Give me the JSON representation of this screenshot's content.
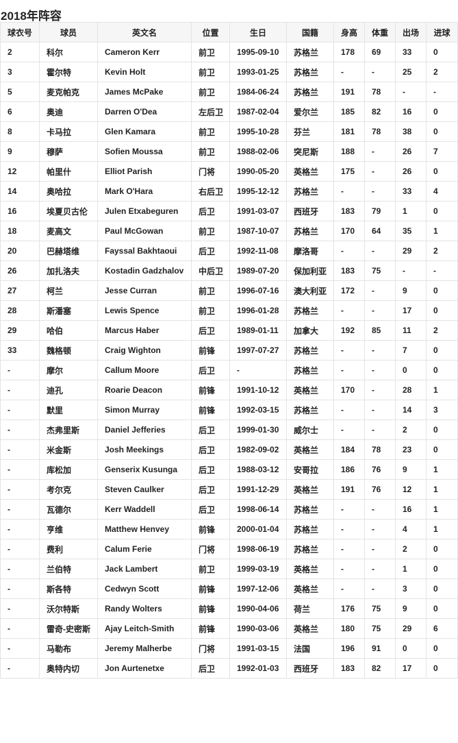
{
  "title": "2018年阵容",
  "headers": [
    "球衣号",
    "球员",
    "英文名",
    "位置",
    "生日",
    "国籍",
    "身高",
    "体重",
    "出场",
    "进球"
  ],
  "rows": [
    [
      "2",
      "科尔",
      "Cameron Kerr",
      "前卫",
      "1995-09-10",
      "苏格兰",
      "178",
      "69",
      "33",
      "0"
    ],
    [
      "3",
      "霍尔特",
      "Kevin Holt",
      "前卫",
      "1993-01-25",
      "苏格兰",
      "-",
      "-",
      "25",
      "2"
    ],
    [
      "5",
      "麦克帕克",
      "James McPake",
      "前卫",
      "1984-06-24",
      "苏格兰",
      "191",
      "78",
      "-",
      "-"
    ],
    [
      "6",
      "奥迪",
      "Darren O'Dea",
      "左后卫",
      "1987-02-04",
      "爱尔兰",
      "185",
      "82",
      "16",
      "0"
    ],
    [
      "8",
      "卡马拉",
      "Glen Kamara",
      "前卫",
      "1995-10-28",
      "芬兰",
      "181",
      "78",
      "38",
      "0"
    ],
    [
      "9",
      "穆萨",
      "Sofien Moussa",
      "前卫",
      "1988-02-06",
      "突尼斯",
      "188",
      "-",
      "26",
      "7"
    ],
    [
      "12",
      "帕里什",
      "Elliot Parish",
      "门将",
      "1990-05-20",
      "英格兰",
      "175",
      "-",
      "26",
      "0"
    ],
    [
      "14",
      "奥哈拉",
      "Mark O'Hara",
      "右后卫",
      "1995-12-12",
      "苏格兰",
      "-",
      "-",
      "33",
      "4"
    ],
    [
      "16",
      "埃夏贝古伦",
      "Julen Etxabeguren",
      "后卫",
      "1991-03-07",
      "西班牙",
      "183",
      "79",
      "1",
      "0"
    ],
    [
      "18",
      "麦高文",
      "Paul McGowan",
      "前卫",
      "1987-10-07",
      "苏格兰",
      "170",
      "64",
      "35",
      "1"
    ],
    [
      "20",
      "巴赫塔维",
      "Fayssal Bakhtaoui",
      "后卫",
      "1992-11-08",
      "摩洛哥",
      "-",
      "-",
      "29",
      "2"
    ],
    [
      "26",
      "加扎洛夫",
      "Kostadin Gadzhalov",
      "中后卫",
      "1989-07-20",
      "保加利亚",
      "183",
      "75",
      "-",
      "-"
    ],
    [
      "27",
      "柯兰",
      "Jesse Curran",
      "前卫",
      "1996-07-16",
      "澳大利亚",
      "172",
      "-",
      "9",
      "0"
    ],
    [
      "28",
      "斯潘塞",
      "Lewis Spence",
      "前卫",
      "1996-01-28",
      "苏格兰",
      "-",
      "-",
      "17",
      "0"
    ],
    [
      "29",
      "哈伯",
      "Marcus Haber",
      "后卫",
      "1989-01-11",
      "加拿大",
      "192",
      "85",
      "11",
      "2"
    ],
    [
      "33",
      "魏格顿",
      "Craig Wighton",
      "前锋",
      "1997-07-27",
      "苏格兰",
      "-",
      "-",
      "7",
      "0"
    ],
    [
      "-",
      "摩尔",
      "Callum Moore",
      "后卫",
      "-",
      "苏格兰",
      "-",
      "-",
      "0",
      "0"
    ],
    [
      "-",
      "迪孔",
      "Roarie Deacon",
      "前锋",
      "1991-10-12",
      "英格兰",
      "170",
      "-",
      "28",
      "1"
    ],
    [
      "-",
      "默里",
      "Simon Murray",
      "前锋",
      "1992-03-15",
      "苏格兰",
      "-",
      "-",
      "14",
      "3"
    ],
    [
      "-",
      "杰弗里斯",
      "Daniel Jefferies",
      "后卫",
      "1999-01-30",
      "威尔士",
      "-",
      "-",
      "2",
      "0"
    ],
    [
      "-",
      "米金斯",
      "Josh Meekings",
      "后卫",
      "1982-09-02",
      "英格兰",
      "184",
      "78",
      "23",
      "0"
    ],
    [
      "-",
      "库松加",
      "Genserix Kusunga",
      "后卫",
      "1988-03-12",
      "安哥拉",
      "186",
      "76",
      "9",
      "1"
    ],
    [
      "-",
      "考尔克",
      "Steven Caulker",
      "后卫",
      "1991-12-29",
      "英格兰",
      "191",
      "76",
      "12",
      "1"
    ],
    [
      "-",
      "瓦德尔",
      "Kerr Waddell",
      "后卫",
      "1998-06-14",
      "苏格兰",
      "-",
      "-",
      "16",
      "1"
    ],
    [
      "-",
      "亨维",
      "Matthew Henvey",
      "前锋",
      "2000-01-04",
      "苏格兰",
      "-",
      "-",
      "4",
      "1"
    ],
    [
      "-",
      "费利",
      "Calum Ferie",
      "门将",
      "1998-06-19",
      "苏格兰",
      "-",
      "-",
      "2",
      "0"
    ],
    [
      "-",
      "兰伯特",
      "Jack Lambert",
      "前卫",
      "1999-03-19",
      "英格兰",
      "-",
      "-",
      "1",
      "0"
    ],
    [
      "-",
      "斯各特",
      "Cedwyn Scott",
      "前锋",
      "1997-12-06",
      "英格兰",
      "-",
      "-",
      "3",
      "0"
    ],
    [
      "-",
      "沃尔特斯",
      "Randy Wolters",
      "前锋",
      "1990-04-06",
      "荷兰",
      "176",
      "75",
      "9",
      "0"
    ],
    [
      "-",
      "雷奇-史密斯",
      "Ajay Leitch-Smith",
      "前锋",
      "1990-03-06",
      "英格兰",
      "180",
      "75",
      "29",
      "6"
    ],
    [
      "-",
      "马勒布",
      "Jeremy Malherbe",
      "门将",
      "1991-03-15",
      "法国",
      "196",
      "91",
      "0",
      "0"
    ],
    [
      "-",
      "奥特内切",
      "Jon Aurtenetxe",
      "后卫",
      "1992-01-03",
      "西班牙",
      "183",
      "82",
      "17",
      "0"
    ]
  ]
}
